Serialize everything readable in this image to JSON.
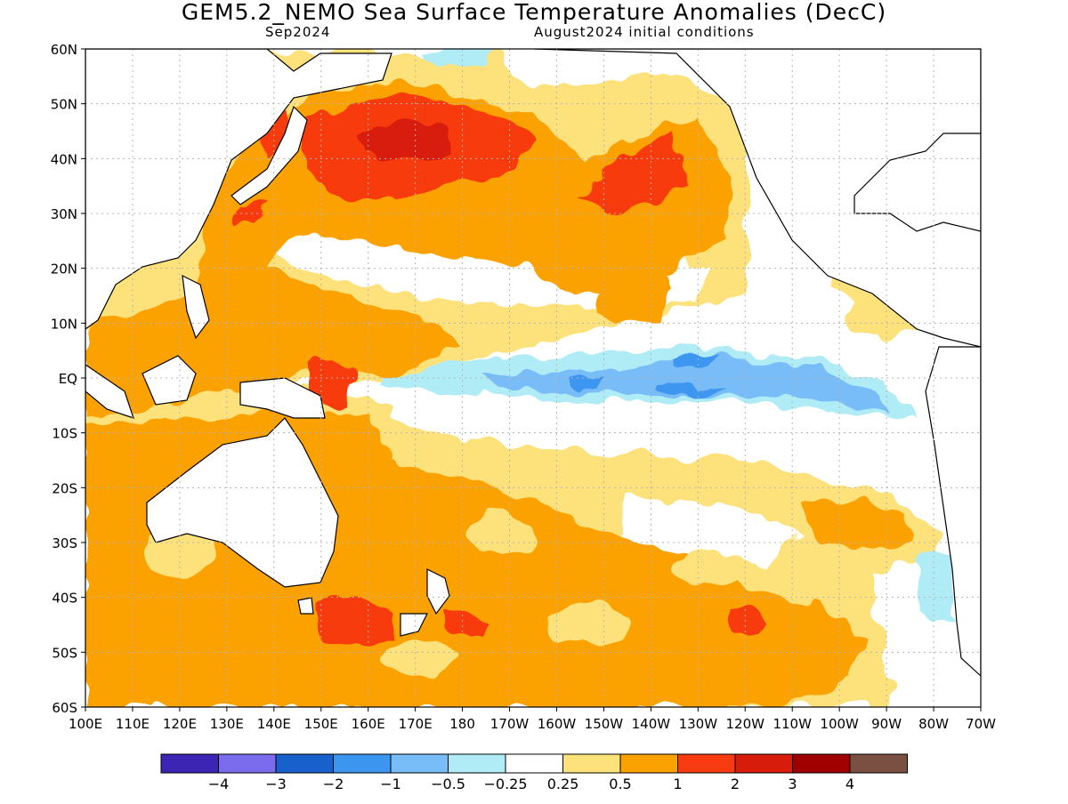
{
  "title": "GEM5.2_NEMO Sea Surface Temperature Anomalies (DecC)",
  "subtitle_left": "Sep2024",
  "subtitle_right": "August2024 initial conditions",
  "lat_labels": [
    "60N",
    "50N",
    "40N",
    "30N",
    "20N",
    "10N",
    "EQ",
    "10S",
    "20S",
    "30S",
    "40S",
    "50S",
    "60S"
  ],
  "lon_labels": [
    "100E",
    "110E",
    "120E",
    "130E",
    "140E",
    "150E",
    "160E",
    "170E",
    "180",
    "170W",
    "160W",
    "150W",
    "140W",
    "130W",
    "120W",
    "110W",
    "100W",
    "90W",
    "80W",
    "70W"
  ],
  "legend": {
    "colors": [
      "#3c24b4",
      "#7a6cec",
      "#1860cc",
      "#3c96f0",
      "#78bcf8",
      "#b0ecf6",
      "#ffffff",
      "#fde27c",
      "#fba200",
      "#f73a10",
      "#d81c0c",
      "#a00000",
      "#7a5042"
    ],
    "labels": [
      "−4",
      "−3",
      "−2",
      "−1",
      "−0.5",
      "−0.25",
      "0.25",
      "0.5",
      "1",
      "2",
      "3",
      "4"
    ]
  },
  "colors": {
    "ocean_neutral": "#ffffff",
    "land": "#ffffff",
    "grid": "#b4b4b4"
  }
}
